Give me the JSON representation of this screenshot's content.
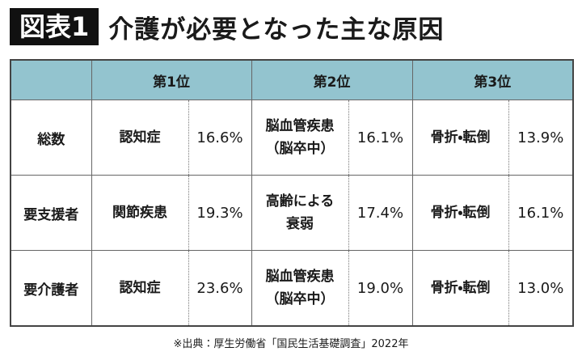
{
  "header": {
    "label": "図表1",
    "title": "介護が必要となった主な原因"
  },
  "table": {
    "columns": [
      "第1位",
      "第2位",
      "第3位"
    ],
    "rows": [
      {
        "label": "総数",
        "items": [
          {
            "cause": [
              "認知症"
            ],
            "share": "16.6%"
          },
          {
            "cause": [
              "脳血管疾患",
              "（脳卒中）"
            ],
            "share": "16.1%"
          },
          {
            "cause": [
              "骨折・転倒"
            ],
            "share": "13.9%"
          }
        ]
      },
      {
        "label": "要支援者",
        "items": [
          {
            "cause": [
              "関節疾患"
            ],
            "share": "19.3%"
          },
          {
            "cause": [
              "高齢による",
              "衰弱"
            ],
            "share": "17.4%"
          },
          {
            "cause": [
              "骨折・転倒"
            ],
            "share": "16.1%"
          }
        ]
      },
      {
        "label": "要介護者",
        "items": [
          {
            "cause": [
              "認知症"
            ],
            "share": "23.6%"
          },
          {
            "cause": [
              "脳血管疾患",
              "（脳卒中）"
            ],
            "share": "19.0%"
          },
          {
            "cause": [
              "骨折・転倒"
            ],
            "share": "13.0%"
          }
        ]
      }
    ]
  },
  "footer": {
    "source": "※出典：厚生労働省「国民生活基礎調査」2022年"
  }
}
